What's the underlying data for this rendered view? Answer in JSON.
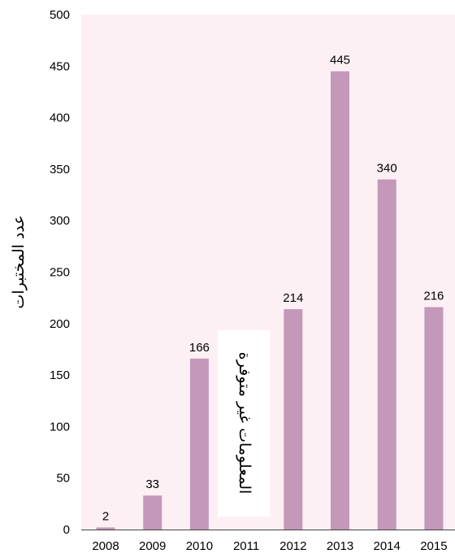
{
  "chart_data": {
    "type": "bar",
    "categories": [
      "2008",
      "2009",
      "2010",
      "2011",
      "2012",
      "2013",
      "2014",
      "2015"
    ],
    "values": [
      2,
      33,
      166,
      null,
      214,
      445,
      340,
      216
    ],
    "data_labels": [
      "2",
      "33",
      "166",
      "",
      "214",
      "445",
      "340",
      "216"
    ],
    "ylabel": "عدد المختبرات",
    "ylim": [
      0,
      500
    ],
    "yticks": [
      0,
      50,
      100,
      150,
      200,
      250,
      300,
      350,
      400,
      450,
      500
    ],
    "grid": false,
    "annotation": "المعلومات غير متوفرة",
    "colors": {
      "bar": "#c398b8",
      "plot_bg": "#fdf0f4",
      "annotation_bg": "#ffffff"
    }
  }
}
